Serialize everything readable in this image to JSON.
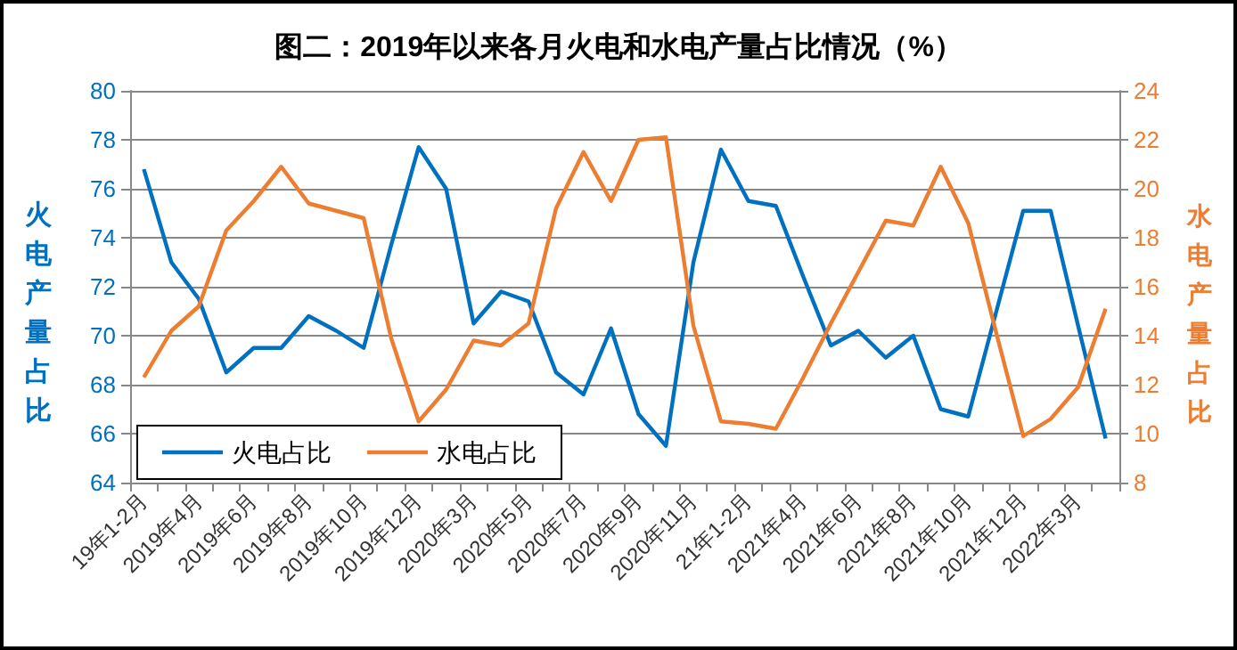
{
  "chart_data": {
    "type": "line",
    "title": "图二：2019年以来各月火电和水电产量占比情况（%）",
    "ylabel": "火电产量占比",
    "y2label": "水电产量占比",
    "categories": [
      "19年1-2月",
      null,
      "2019年4月",
      null,
      "2019年6月",
      null,
      "2019年8月",
      null,
      "2019年10月",
      null,
      "2019年12月",
      null,
      "2020年3月",
      null,
      "2020年5月",
      null,
      "2020年7月",
      null,
      "2020年9月",
      null,
      "2020年11月",
      null,
      "21年1-2月",
      null,
      "2021年4月",
      null,
      "2021年6月",
      null,
      "2021年8月",
      null,
      "2021年10月",
      null,
      "2021年12月",
      null,
      "2022年3月",
      null
    ],
    "series": [
      {
        "name": "火电占比",
        "color": "#0070c0",
        "values": [
          76.8,
          73.0,
          71.5,
          68.5,
          69.5,
          69.5,
          70.8,
          70.2,
          69.5,
          73.7,
          77.7,
          76.0,
          70.5,
          71.8,
          71.4,
          68.5,
          67.6,
          70.3,
          66.8,
          65.5,
          73.0,
          77.6,
          75.5,
          75.3,
          72.4,
          69.6,
          70.2,
          69.1,
          70.0,
          67.0,
          66.7,
          70.9,
          75.1,
          75.1,
          70.4,
          65.8
        ]
      },
      {
        "name": "水电占比",
        "color": "#ed7d31",
        "axis": "y2",
        "values": [
          12.3,
          14.2,
          15.2,
          18.3,
          19.5,
          20.9,
          19.4,
          19.1,
          18.8,
          13.9,
          10.5,
          11.8,
          13.8,
          13.6,
          14.5,
          19.2,
          21.5,
          19.5,
          22.0,
          22.1,
          14.4,
          10.5,
          10.4,
          10.2,
          12.3,
          14.5,
          16.6,
          18.7,
          18.5,
          20.9,
          18.6,
          14.2,
          9.9,
          10.6,
          11.9,
          15.1
        ]
      }
    ],
    "ylim": [
      64,
      80
    ],
    "yticks": [
      64,
      66,
      68,
      70,
      72,
      74,
      76,
      78,
      80
    ],
    "y2lim": [
      8,
      24
    ],
    "y2ticks": [
      8,
      10,
      12,
      14,
      16,
      18,
      20,
      22,
      24
    ],
    "grid": "y",
    "legend": "bottom left",
    "marker": "none",
    "line_style": "solid"
  }
}
